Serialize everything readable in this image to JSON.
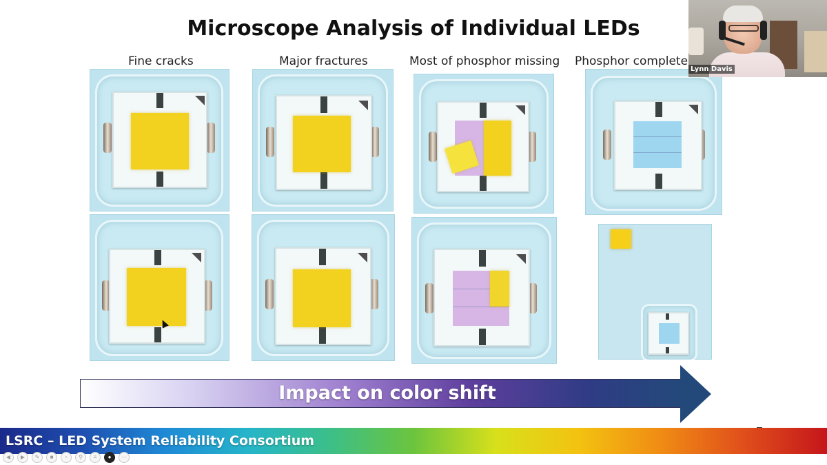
{
  "slide": {
    "title": "Microscope Analysis of Individual LEDs",
    "columns": [
      {
        "label": "Fine cracks"
      },
      {
        "label": "Major fractures"
      },
      {
        "label": "Most of phosphor missing"
      },
      {
        "label": "Phosphor completel"
      }
    ],
    "arrow_label": "Impact on color shift",
    "footer": "LSRC – LED System Reliability Consortium"
  },
  "webcam": {
    "participant_name": "Lynn Davis"
  },
  "toolbar": {
    "buttons": [
      "prev-icon",
      "next-icon",
      "pen-icon",
      "highlighter-icon",
      "eraser-icon",
      "zoom-icon",
      "menu-icon",
      "camera-icon",
      "more-icon"
    ]
  },
  "colors": {
    "photo_background": "#bfe4ef",
    "phosphor_yellow": "#f2d21e",
    "bare_chip_blue": "#9ed6f0",
    "arrow_dark": "#23497a",
    "footer_text": "#ffffff"
  }
}
